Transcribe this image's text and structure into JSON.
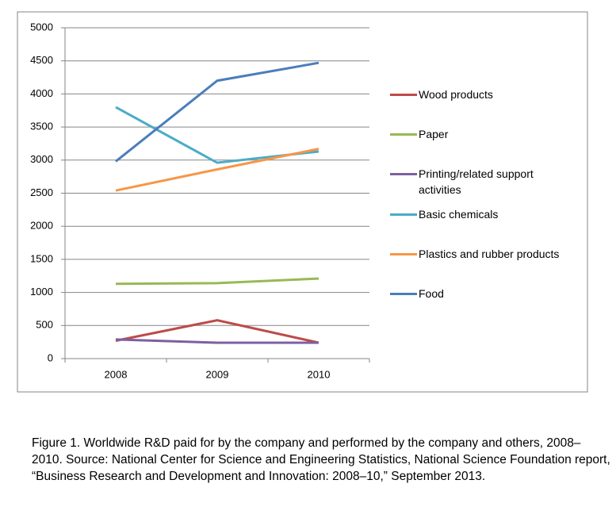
{
  "chart_data": {
    "type": "line",
    "categories": [
      "2008",
      "2009",
      "2010"
    ],
    "series": [
      {
        "name": "Wood products",
        "color": "#be4b48",
        "values": [
          270,
          580,
          240
        ]
      },
      {
        "name": "Paper",
        "color": "#98b954",
        "values": [
          1130,
          1140,
          1210
        ]
      },
      {
        "name": "Printing/related support activities",
        "color": "#7d60a0",
        "values": [
          290,
          240,
          240
        ]
      },
      {
        "name": "Basic chemicals",
        "color": "#4bacc6",
        "values": [
          3800,
          2960,
          3130
        ]
      },
      {
        "name": "Plastics and rubber products",
        "color": "#f79646",
        "values": [
          2540,
          2860,
          3170
        ]
      },
      {
        "name": "Food",
        "color": "#4a7ebb",
        "values": [
          2980,
          4200,
          4470
        ]
      }
    ],
    "ylim": [
      0,
      5000
    ],
    "yticks": [
      0,
      500,
      1000,
      1500,
      2000,
      2500,
      3000,
      3500,
      4000,
      4500,
      5000
    ],
    "grid": true,
    "legend": "right",
    "caption": "Figure 1. Worldwide R&D paid for by the company and performed by the company and others, 2008–2010. Source: National Center for Science and Engineering Statistics, National Science Foundation report, “Business Research and Development and Innovation: 2008–10,” September 2013."
  }
}
